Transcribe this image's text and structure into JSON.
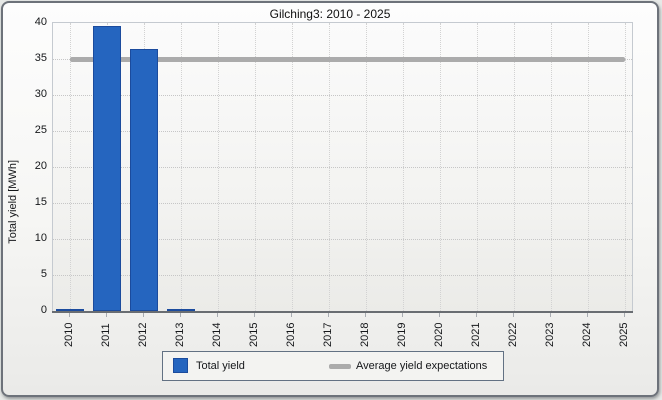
{
  "chart_data": {
    "type": "bar",
    "title": "Gilching3: 2010 - 2025",
    "ylabel": "Total yield [MWh]",
    "xlabel": "",
    "ylim": [
      0,
      40
    ],
    "yticks": [
      0,
      5,
      10,
      15,
      20,
      25,
      30,
      35,
      40
    ],
    "grid": true,
    "legend_position": "bottom",
    "categories": [
      "2010",
      "2011",
      "2012",
      "2013",
      "2014",
      "2015",
      "2016",
      "2017",
      "2018",
      "2019",
      "2020",
      "2021",
      "2022",
      "2023",
      "2024",
      "2025"
    ],
    "series": [
      {
        "name": "Total yield",
        "type": "bar",
        "color": "#2565BF",
        "border_color": "#1B4B9D",
        "values": [
          0.3,
          39.6,
          36.4,
          0.3,
          0,
          0,
          0,
          0,
          0,
          0,
          0,
          0,
          0,
          0,
          0,
          0
        ]
      },
      {
        "name": "Average yield expectations",
        "type": "line",
        "color": "#ABABAB",
        "value": 35
      }
    ]
  },
  "colors": {
    "bar_fill": "#2565BF",
    "bar_border": "#1B4B9D",
    "average_line": "#ABABAB",
    "axis_line": "#696d72",
    "legend_border": "#627183"
  }
}
